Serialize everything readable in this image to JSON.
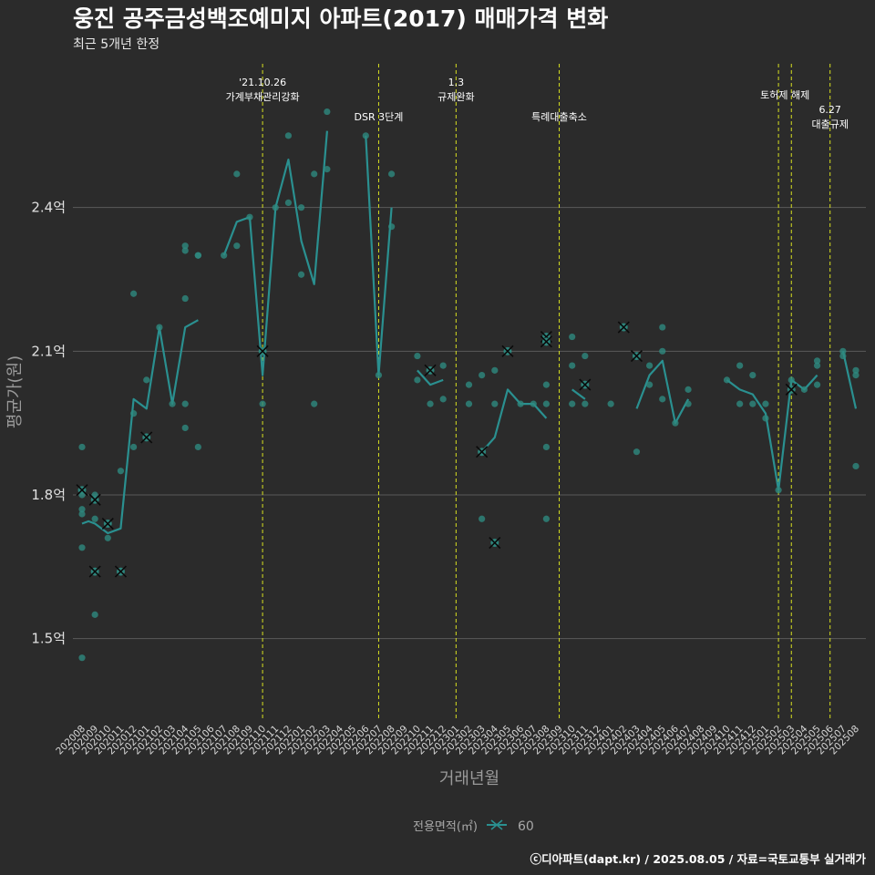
{
  "colors": {
    "background": "#2b2b2b",
    "grid": "#5a5a5a",
    "line": "#2a9090",
    "point": "#2e8a80",
    "vline": "#d8e020",
    "cross": "#0a0a0a"
  },
  "chart_data": {
    "type": "line",
    "title": "웅진 공주금성백조예미지 아파트(2017) 매매가격 변화",
    "subtitle": "최근 5개년 한정",
    "xlabel": "거래년월",
    "ylabel": "평균가(원)",
    "ylim": [
      1.33,
      2.7
    ],
    "yticks": [
      {
        "value": 1.5,
        "label": "1.5억"
      },
      {
        "value": 1.8,
        "label": "1.8억"
      },
      {
        "value": 2.1,
        "label": "2.1억"
      },
      {
        "value": 2.4,
        "label": "2.4억"
      }
    ],
    "categories": [
      "202008",
      "202009",
      "202010",
      "202011",
      "202012",
      "202101",
      "202102",
      "202103",
      "202104",
      "202105",
      "202106",
      "202107",
      "202108",
      "202109",
      "202110",
      "202111",
      "202112",
      "202201",
      "202202",
      "202203",
      "202204",
      "202205",
      "202206",
      "202207",
      "202208",
      "202209",
      "202210",
      "202211",
      "202212",
      "202301",
      "202302",
      "202303",
      "202304",
      "202305",
      "202306",
      "202307",
      "202308",
      "202309",
      "202310",
      "202311",
      "202312",
      "202401",
      "202402",
      "202403",
      "202404",
      "202405",
      "202406",
      "202407",
      "202408",
      "202409",
      "202410",
      "202411",
      "202412",
      "202501",
      "202502",
      "202503",
      "202504",
      "202505",
      "202506",
      "202507",
      "202508"
    ],
    "legend": {
      "title": "전용면적(㎡)",
      "label": "60",
      "position": "bottom"
    },
    "series": [
      {
        "name": "60",
        "line": [
          [
            [
              0,
              1.74
            ],
            [
              0.5,
              1.745
            ],
            [
              1,
              1.74
            ],
            [
              2,
              1.72
            ],
            [
              3,
              1.73
            ],
            [
              4,
              2.0
            ],
            [
              5,
              1.98
            ],
            [
              6,
              2.15
            ],
            [
              7,
              1.99
            ],
            [
              8,
              2.15
            ],
            [
              9,
              2.165
            ]
          ],
          [
            [
              11,
              2.3
            ],
            [
              12,
              2.37
            ],
            [
              13,
              2.38
            ],
            [
              14,
              2.05
            ],
            [
              15,
              2.4
            ],
            [
              16,
              2.5
            ],
            [
              17,
              2.33
            ],
            [
              18,
              2.24
            ],
            [
              19,
              2.56
            ]
          ],
          [
            [
              22,
              2.55
            ],
            [
              23,
              2.05
            ],
            [
              24,
              2.4
            ]
          ],
          [
            [
              26,
              2.06
            ],
            [
              27,
              2.03
            ],
            [
              28,
              2.04
            ]
          ],
          [
            [
              31,
              1.89
            ],
            [
              32,
              1.92
            ],
            [
              33,
              2.02
            ],
            [
              34,
              1.99
            ],
            [
              35,
              1.99
            ],
            [
              36,
              1.96
            ]
          ],
          [
            [
              38,
              2.02
            ],
            [
              39,
              2.0
            ]
          ],
          [
            [
              43,
              1.98
            ],
            [
              44,
              2.05
            ],
            [
              45,
              2.08
            ],
            [
              46,
              1.95
            ],
            [
              47,
              2.0
            ]
          ],
          [
            [
              50,
              2.04
            ],
            [
              51,
              2.02
            ],
            [
              52,
              2.01
            ],
            [
              53,
              1.97
            ],
            [
              54,
              1.81
            ],
            [
              55,
              2.04
            ],
            [
              56,
              2.02
            ],
            [
              57,
              2.05
            ]
          ],
          [
            [
              59,
              2.1
            ],
            [
              60,
              1.98
            ]
          ]
        ]
      }
    ],
    "points": [
      [
        0,
        1.81
      ],
      [
        0,
        1.8
      ],
      [
        0,
        1.77
      ],
      [
        0,
        1.76
      ],
      [
        0,
        1.9
      ],
      [
        0,
        1.69
      ],
      [
        0,
        1.46
      ],
      [
        1,
        1.8
      ],
      [
        1,
        1.79
      ],
      [
        1,
        1.75
      ],
      [
        1,
        1.55
      ],
      [
        1,
        1.64
      ],
      [
        2,
        1.71
      ],
      [
        2,
        1.74
      ],
      [
        3,
        1.85
      ],
      [
        3,
        1.64
      ],
      [
        4,
        2.22
      ],
      [
        4,
        1.9
      ],
      [
        4,
        1.97
      ],
      [
        5,
        1.92
      ],
      [
        5,
        2.04
      ],
      [
        6,
        2.15
      ],
      [
        7,
        1.99
      ],
      [
        8,
        2.31
      ],
      [
        8,
        2.32
      ],
      [
        8,
        2.21
      ],
      [
        8,
        1.99
      ],
      [
        8,
        1.94
      ],
      [
        9,
        2.3
      ],
      [
        9,
        2.3
      ],
      [
        9,
        1.9
      ],
      [
        11,
        2.3
      ],
      [
        12,
        2.47
      ],
      [
        12,
        2.32
      ],
      [
        13,
        2.38
      ],
      [
        14,
        2.1
      ],
      [
        14,
        1.99
      ],
      [
        15,
        2.4
      ],
      [
        16,
        2.55
      ],
      [
        16,
        2.41
      ],
      [
        17,
        2.4
      ],
      [
        17,
        2.26
      ],
      [
        18,
        2.47
      ],
      [
        18,
        1.99
      ],
      [
        19,
        2.6
      ],
      [
        19,
        2.48
      ],
      [
        22,
        2.55
      ],
      [
        23,
        2.05
      ],
      [
        24,
        2.47
      ],
      [
        24,
        2.36
      ],
      [
        26,
        2.09
      ],
      [
        26,
        2.04
      ],
      [
        27,
        2.06
      ],
      [
        27,
        1.99
      ],
      [
        28,
        2.07
      ],
      [
        28,
        2.0
      ],
      [
        30,
        2.03
      ],
      [
        30,
        1.99
      ],
      [
        31,
        1.89
      ],
      [
        31,
        2.05
      ],
      [
        31,
        1.75
      ],
      [
        32,
        2.06
      ],
      [
        32,
        1.99
      ],
      [
        32,
        1.7
      ],
      [
        33,
        2.1
      ],
      [
        34,
        1.99
      ],
      [
        35,
        1.99
      ],
      [
        36,
        2.13
      ],
      [
        36,
        2.12
      ],
      [
        36,
        2.03
      ],
      [
        36,
        1.99
      ],
      [
        36,
        1.9
      ],
      [
        36,
        1.75
      ],
      [
        38,
        2.13
      ],
      [
        38,
        2.07
      ],
      [
        38,
        1.99
      ],
      [
        39,
        2.09
      ],
      [
        39,
        2.03
      ],
      [
        39,
        1.99
      ],
      [
        41,
        1.99
      ],
      [
        42,
        2.15
      ],
      [
        43,
        2.09
      ],
      [
        43,
        1.89
      ],
      [
        44,
        2.07
      ],
      [
        44,
        2.03
      ],
      [
        45,
        2.15
      ],
      [
        45,
        2.1
      ],
      [
        45,
        2.0
      ],
      [
        46,
        1.95
      ],
      [
        47,
        2.02
      ],
      [
        47,
        1.99
      ],
      [
        50,
        2.04
      ],
      [
        51,
        2.07
      ],
      [
        51,
        1.99
      ],
      [
        52,
        2.05
      ],
      [
        52,
        1.99
      ],
      [
        53,
        1.99
      ],
      [
        53,
        1.96
      ],
      [
        54,
        1.81
      ],
      [
        55,
        2.04
      ],
      [
        56,
        2.02
      ],
      [
        57,
        2.07
      ],
      [
        57,
        2.08
      ],
      [
        57,
        2.03
      ],
      [
        59,
        2.1
      ],
      [
        59,
        2.09
      ],
      [
        60,
        2.06
      ],
      [
        60,
        2.05
      ],
      [
        60,
        1.86
      ]
    ],
    "crosses": [
      [
        0,
        1.81
      ],
      [
        1,
        1.79
      ],
      [
        1,
        1.64
      ],
      [
        2,
        1.74
      ],
      [
        3,
        1.64
      ],
      [
        5,
        1.92
      ],
      [
        14,
        2.1
      ],
      [
        27,
        2.06
      ],
      [
        31,
        1.89
      ],
      [
        32,
        1.7
      ],
      [
        33,
        2.1
      ],
      [
        36,
        2.13
      ],
      [
        36,
        2.12
      ],
      [
        39,
        2.03
      ],
      [
        42,
        2.15
      ],
      [
        43,
        2.09
      ],
      [
        55,
        2.02
      ]
    ],
    "vlines": [
      14,
      23,
      29,
      37,
      54,
      55,
      58
    ],
    "annotations": [
      {
        "x": 14,
        "lines": [
          "'21.10.26",
          "가계부채관리강화"
        ],
        "level": 0
      },
      {
        "x": 23,
        "lines": [
          "DSR 3단계"
        ],
        "level": 2
      },
      {
        "x": 29,
        "lines": [
          "1.3",
          "규제완화"
        ],
        "level": 0
      },
      {
        "x": 37,
        "lines": [
          "특례대출축소"
        ],
        "level": 2
      },
      {
        "x": 54.5,
        "lines": [
          "토허제 해제"
        ],
        "level": 1
      },
      {
        "x": 58,
        "lines": [
          "6.27",
          "대출규제"
        ],
        "level": 3
      }
    ]
  },
  "footer": "ⓒ디아파트(dapt.kr) / 2025.08.05 / 자료=국토교통부 실거래가"
}
